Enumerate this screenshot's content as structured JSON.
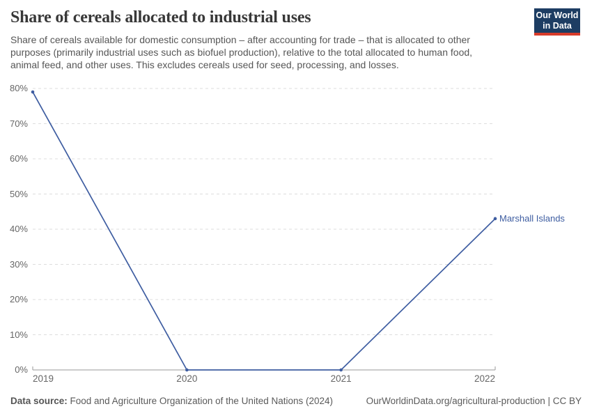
{
  "header": {
    "title": "Share of cereals allocated to industrial uses",
    "subtitle": "Share of cereals available for domestic consumption – after accounting for trade – that is allocated to other\npurposes (primarily industrial uses such as biofuel production), relative to the total allocated to human food,\nanimal feed, and other uses. This excludes cereals used for seed, processing, and losses."
  },
  "logo": {
    "line1": "Our World",
    "line2": "in Data",
    "bg_color": "#1d3d63",
    "bar_color": "#d73b2a"
  },
  "chart_data": {
    "type": "line",
    "title": "Share of cereals allocated to industrial uses",
    "x": [
      2019,
      2020,
      2021,
      2022
    ],
    "xtick_labels": [
      "2019",
      "2020",
      "2021",
      "2022"
    ],
    "series": [
      {
        "name": "Marshall Islands",
        "values": [
          79,
          0,
          0,
          43
        ],
        "color": "#3e5da1"
      }
    ],
    "xlabel": "",
    "ylabel": "",
    "ylim": [
      0,
      80
    ],
    "yticks": [
      0,
      10,
      20,
      30,
      40,
      50,
      60,
      70,
      80
    ],
    "ytick_labels": [
      "0%",
      "10%",
      "20%",
      "30%",
      "40%",
      "50%",
      "60%",
      "70%",
      "80%"
    ],
    "grid": "horizontal-dashed",
    "legend_position": "end-of-line-label"
  },
  "footer": {
    "source_label": "Data source:",
    "source_text": " Food and Agriculture Organization of the United Nations (2024)",
    "credit": "OurWorldinData.org/agricultural-production | CC BY"
  }
}
